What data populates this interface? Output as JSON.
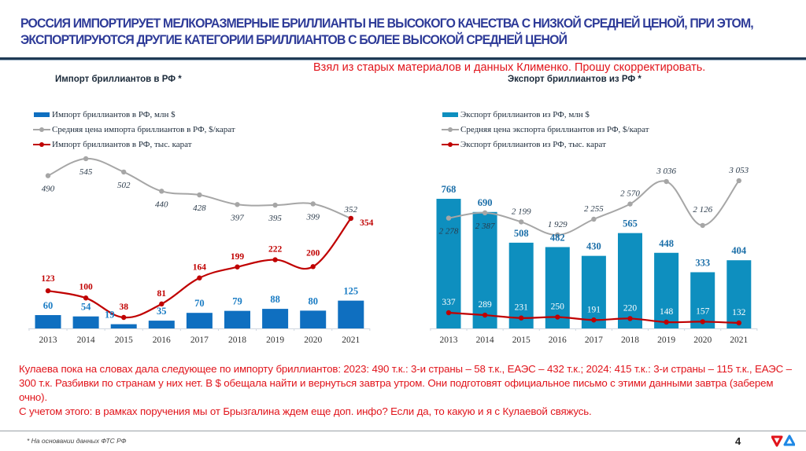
{
  "header": {
    "title_line1": "РОССИЯ ИМПОРТИРУЕТ МЕЛКОРАЗМЕРНЫЕ БРИЛЛИАНТЫ НЕ ВЫСОКОГО КАЧЕСТВА С НИЗКОЙ СРЕДНЕЙ ЦЕНОЙ, ПРИ ЭТОМ,",
    "title_line2": "ЭКСПОРТИРУЮТСЯ ДРУГИЕ КАТЕГОРИИ БРИЛЛИАНТОВ С БОЛЕЕ ВЫСОКОЙ СРЕДНЕЙ ЦЕНОЙ",
    "comment": "Взял из старых материалов и данных Клименко. Прошу скорректировать."
  },
  "colors": {
    "title": "#2e3b98",
    "import_bar": "#0f6fc0",
    "export_bar": "#0e8fbf",
    "price_line": "#a6a6a6",
    "carat_line": "#c00000",
    "note_red": "#e1141b"
  },
  "chart_data": [
    {
      "type": "bar",
      "title": "Импорт бриллиантов в РФ *",
      "legend_position": "top-left",
      "categories": [
        "2013",
        "2014",
        "2015",
        "2016",
        "2017",
        "2018",
        "2019",
        "2020",
        "2021"
      ],
      "series": [
        {
          "name": "Импорт бриллиантов в РФ, млн $",
          "kind": "bar",
          "values": [
            60,
            54,
            19,
            35,
            70,
            79,
            88,
            80,
            125
          ],
          "labels": [
            "60",
            "54",
            "19",
            "35",
            "70",
            "79",
            "88",
            "80",
            "125"
          ]
        },
        {
          "name": "Средняя цена импорта бриллиантов в РФ, $/карат",
          "kind": "line",
          "values": [
            490,
            545,
            502,
            440,
            428,
            397,
            395,
            399,
            352
          ],
          "labels": [
            "490",
            "545",
            "502",
            "440",
            "428",
            "397",
            "395",
            "399",
            "352"
          ]
        },
        {
          "name": "Импорт бриллиантов в РФ, тыс. карат",
          "kind": "line",
          "values": [
            123,
            100,
            38,
            81,
            164,
            199,
            222,
            200,
            354
          ],
          "labels": [
            "123",
            "100",
            "38",
            "81",
            "164",
            "199",
            "222",
            "200",
            "354"
          ]
        }
      ],
      "grid": false
    },
    {
      "type": "bar",
      "title": "Экспорт бриллиантов из РФ *",
      "legend_position": "top-left",
      "categories": [
        "2013",
        "2014",
        "2015",
        "2016",
        "2017",
        "2018",
        "2019",
        "2020",
        "2021"
      ],
      "series": [
        {
          "name": "Экспорт бриллиантов из РФ, млн $",
          "kind": "bar",
          "values": [
            768,
            690,
            508,
            482,
            430,
            565,
            448,
            333,
            404
          ],
          "labels": [
            "768",
            "690",
            "508",
            "482",
            "430",
            "565",
            "448",
            "333",
            "404"
          ]
        },
        {
          "name": "Средняя цена экспорта бриллиантов из РФ, $/карат",
          "kind": "line",
          "values": [
            2278,
            2387,
            2199,
            1929,
            2255,
            2570,
            3036,
            2126,
            3053
          ],
          "labels": [
            "2 278",
            "2 387",
            "2 199",
            "1 929",
            "2 255",
            "2 570",
            "3 036",
            "2 126",
            "3 053"
          ]
        },
        {
          "name": "Экспорт бриллиантов из РФ, тыс. карат",
          "kind": "line",
          "values": [
            337,
            289,
            231,
            250,
            191,
            220,
            148,
            157,
            132
          ],
          "labels": [
            "337",
            "289",
            "231",
            "250",
            "191",
            "220",
            "148",
            "157",
            "132"
          ]
        }
      ],
      "grid": false
    }
  ],
  "bottom_note": {
    "line1": "Кулаева пока на словах дала следующее по импорту бриллиантов: 2023: 490 т.к.: 3-и страны – 58 т.к., ЕАЭС – 432 т.к.; 2024: 415 т.к.: 3-и страны – 115 т.к., ЕАЭС – 300 т.к. Разбивки по странам у них нет. В $ обещала найти и вернуться завтра утром. Они подготовят официальное письмо с этими данными завтра (заберем очно).",
    "line2": "С учетом этого: в рамках поручения мы от Брызгалина ждем еще доп. инфо? Если да, то какую и я с Кулаевой свяжусь."
  },
  "footer": {
    "footnote": "* На основании данных ФТС РФ",
    "page_number": "4",
    "logo_icon": "company-logo-icon"
  }
}
